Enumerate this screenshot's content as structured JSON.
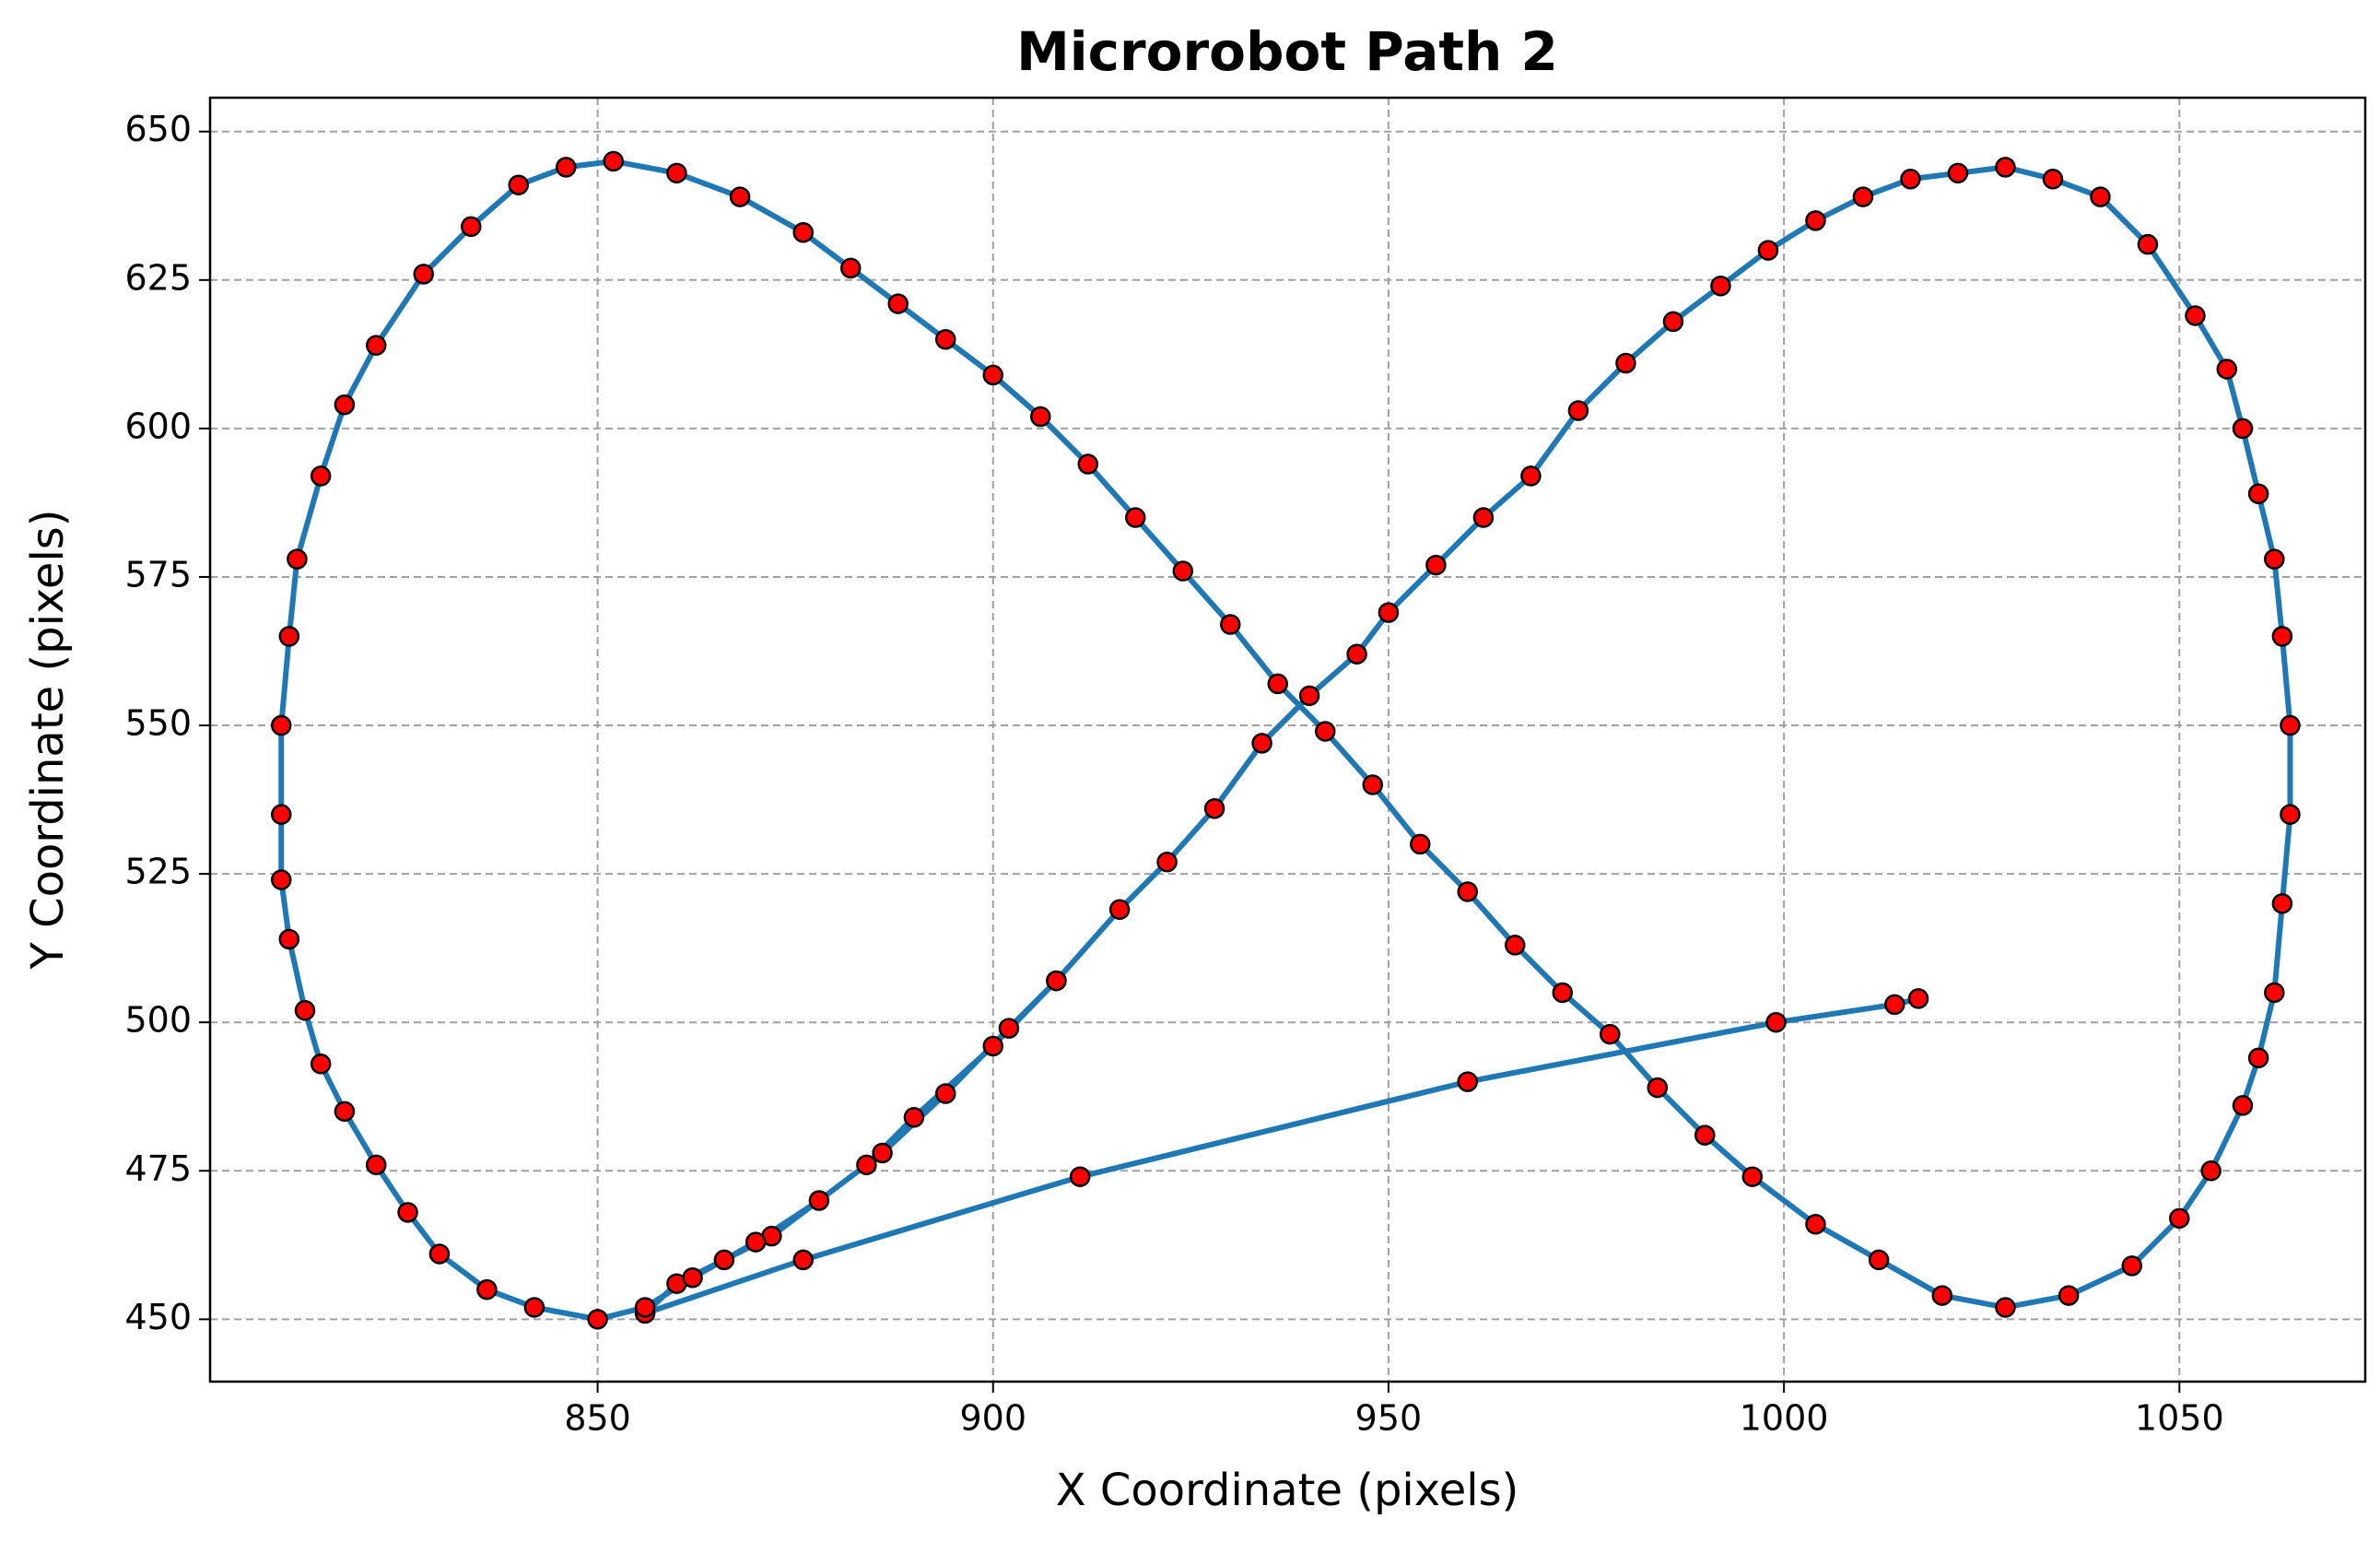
{
  "chart_data": {
    "type": "line",
    "title": "Microrobot Path 2",
    "x_label": "X Coordinate (pixels)",
    "y_label": "Y Coordinate (pixels)",
    "x": [
      1017,
      1014,
      999,
      960,
      911,
      876,
      856,
      860,
      866,
      872,
      884,
      890,
      900,
      908,
      916,
      922,
      928,
      934,
      940,
      946,
      950,
      956,
      962,
      968,
      974,
      980,
      986,
      992,
      998,
      1004,
      1010,
      1016,
      1022,
      1028,
      1034,
      1040,
      1046,
      1052,
      1056,
      1058,
      1060,
      1062,
      1063,
      1064,
      1064,
      1063,
      1062,
      1060,
      1058,
      1054,
      1050,
      1044,
      1036,
      1028,
      1020,
      1012,
      1004,
      996,
      990,
      984,
      978,
      972,
      966,
      960,
      954,
      948,
      942,
      936,
      930,
      924,
      918,
      912,
      906,
      900,
      894,
      888,
      882,
      876,
      868,
      860,
      852,
      846,
      840,
      834,
      828,
      822,
      818,
      815,
      812,
      811,
      810,
      810,
      810,
      811,
      813,
      815,
      818,
      822,
      826,
      830,
      836,
      842,
      850,
      856,
      862,
      870,
      878,
      886,
      894,
      902,
      908
    ],
    "series": [
      {
        "color": "#1f77b4",
        "marker_color": "#ff0000",
        "values": [
          504,
          503,
          500,
          490,
          474,
          460,
          451,
          456,
          460,
          464,
          476,
          484,
          496,
          507,
          519,
          527,
          536,
          547,
          555,
          562,
          569,
          577,
          585,
          592,
          603,
          611,
          618,
          624,
          630,
          635,
          639,
          642,
          643,
          644,
          642,
          639,
          631,
          619,
          610,
          600,
          589,
          578,
          565,
          550,
          535,
          520,
          505,
          494,
          486,
          475,
          467,
          459,
          454,
          452,
          454,
          460,
          466,
          474,
          481,
          489,
          498,
          505,
          513,
          522,
          530,
          540,
          549,
          557,
          567,
          576,
          585,
          594,
          602,
          609,
          615,
          621,
          627,
          633,
          639,
          643,
          645,
          644,
          641,
          634,
          626,
          614,
          604,
          592,
          578,
          565,
          550,
          535,
          524,
          514,
          502,
          493,
          485,
          476,
          468,
          461,
          455,
          452,
          450,
          452,
          457,
          463,
          470,
          478,
          488,
          499,
          507
        ]
      }
    ],
    "xlim": [
      801,
      1073.5
    ],
    "xticks": [
      850,
      900,
      950,
      1000,
      1050
    ],
    "ylim": [
      439.5,
      655.7
    ],
    "yticks": [
      450,
      475,
      500,
      525,
      550,
      575,
      600,
      625,
      650
    ],
    "grid": true
  }
}
